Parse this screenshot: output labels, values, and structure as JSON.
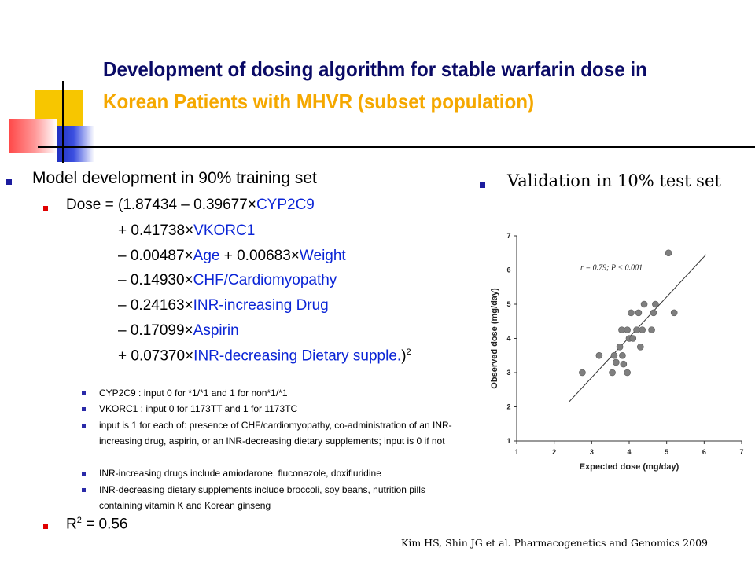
{
  "slide": {
    "title_line1": "Development of dosing algorithm for stable warfarin dose in",
    "title_line2": "Korean Patients with MHVR (subset population)"
  },
  "left": {
    "heading": "Model development in 90% training set",
    "equation": {
      "prefix": "Dose = (1.87434 – 0.39677",
      "terms": [
        {
          "coef": "",
          "var": "CYP2C9"
        },
        {
          "coef": "+ 0.41738",
          "var": "VKORC1"
        },
        {
          "coef": "– 0.00487",
          "var": "Age"
        },
        {
          "coef": "+ 0.00683",
          "var": "Weight"
        },
        {
          "coef": "– 0.14930",
          "var": "CHF/Cardiomyopathy"
        },
        {
          "coef": "– 0.24163",
          "var": "INR-increasing Drug"
        },
        {
          "coef": "– 0.17099",
          "var": "Aspirin"
        },
        {
          "coef": "+ 0.07370",
          "var": "INR-decreasing Dietary supple."
        }
      ],
      "times": "×",
      "close": ")",
      "power": "2"
    },
    "notes": [
      "CYP2C9 : input 0 for *1/*1 and 1 for non*1/*1",
      "VKORC1 : input 0 for 1173TT and 1 for 1173TC",
      "input is 1 for each of: presence of CHF/cardiomyopathy, co-administration of an INR-increasing drug, aspirin, or an INR-decreasing dietary supplements; input is 0 if not",
      "INR-increasing drugs include amiodarone, fluconazole, doxifluridine",
      "INR-decreasing dietary supplements include broccoli, soy beans, nutrition pills containing vitamin K and Korean ginseng"
    ],
    "r2": {
      "label": "R",
      "sup": "2",
      "value": " = 0.56"
    }
  },
  "right": {
    "heading": "Validation in 10% test set"
  },
  "citation": "Kim HS, Shin JG et al. Pharmacogenetics and Genomics 2009",
  "chart_data": {
    "type": "scatter",
    "xlabel": "Expected dose (mg/day)",
    "ylabel": "Observed dose (mg/day)",
    "xlim": [
      1,
      7
    ],
    "ylim": [
      1,
      7
    ],
    "xticks": [
      "1",
      "2",
      "3",
      "4",
      "5",
      "6",
      "7"
    ],
    "yticks": [
      "1",
      "2",
      "3",
      "4",
      "5",
      "6",
      "7"
    ],
    "annotation": "r = 0.79;  P < 0.001",
    "grid": false,
    "points": [
      {
        "x": 2.75,
        "y": 3.0
      },
      {
        "x": 3.2,
        "y": 3.5
      },
      {
        "x": 3.55,
        "y": 3.0
      },
      {
        "x": 3.6,
        "y": 3.5
      },
      {
        "x": 3.65,
        "y": 3.3
      },
      {
        "x": 3.75,
        "y": 3.75
      },
      {
        "x": 3.8,
        "y": 4.25
      },
      {
        "x": 3.82,
        "y": 3.5
      },
      {
        "x": 3.85,
        "y": 3.25
      },
      {
        "x": 3.95,
        "y": 4.25
      },
      {
        "x": 3.95,
        "y": 3.0
      },
      {
        "x": 4.0,
        "y": 4.0
      },
      {
        "x": 4.05,
        "y": 4.75
      },
      {
        "x": 4.1,
        "y": 4.0
      },
      {
        "x": 4.2,
        "y": 4.25
      },
      {
        "x": 4.25,
        "y": 4.75
      },
      {
        "x": 4.3,
        "y": 3.75
      },
      {
        "x": 4.35,
        "y": 4.25
      },
      {
        "x": 4.4,
        "y": 5.0
      },
      {
        "x": 4.6,
        "y": 4.25
      },
      {
        "x": 4.65,
        "y": 4.75
      },
      {
        "x": 4.7,
        "y": 5.0
      },
      {
        "x": 5.05,
        "y": 6.5
      },
      {
        "x": 5.2,
        "y": 4.75
      }
    ],
    "fit_line": {
      "x": [
        2.4,
        6.05
      ],
      "y": [
        2.15,
        6.45
      ]
    }
  }
}
